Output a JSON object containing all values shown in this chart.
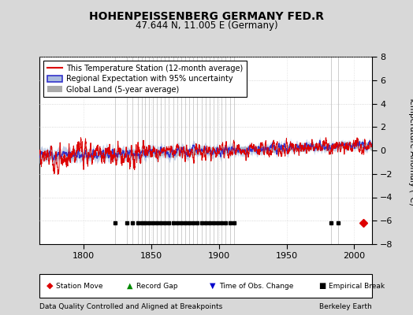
{
  "title": "HOHENPEISSENBERG GERMANY FED.R",
  "subtitle": "47.644 N, 11.005 E (Germany)",
  "ylabel": "Temperature Anomaly (°C)",
  "footer_left": "Data Quality Controlled and Aligned at Breakpoints",
  "footer_right": "Berkeley Earth",
  "xlim": [
    1767,
    2013
  ],
  "ylim": [
    -8,
    8
  ],
  "yticks": [
    -8,
    -6,
    -4,
    -2,
    0,
    2,
    4,
    6,
    8
  ],
  "xticks": [
    1800,
    1850,
    1900,
    1950,
    2000
  ],
  "bg_color": "#d8d8d8",
  "plot_bg_color": "#ffffff",
  "station_color": "#dd0000",
  "regional_color": "#3333cc",
  "regional_fill": "#aabbdd",
  "global_color": "#aaaaaa",
  "legend_entries": [
    "This Temperature Station (12-month average)",
    "Regional Expectation with 95% uncertainty",
    "Global Land (5-year average)"
  ],
  "empirical_breaks": [
    1823,
    1832,
    1836,
    1840,
    1843,
    1845,
    1848,
    1851,
    1854,
    1857,
    1860,
    1863,
    1866,
    1869,
    1872,
    1875,
    1878,
    1881,
    1884,
    1887,
    1890,
    1893,
    1896,
    1899,
    1902,
    1905,
    1908,
    1911,
    1983,
    1988
  ],
  "station_move_year": 2007,
  "marker_y": -6.2,
  "vline_color": "#777777",
  "vline_alpha": 0.5,
  "grid_color": "#cccccc"
}
